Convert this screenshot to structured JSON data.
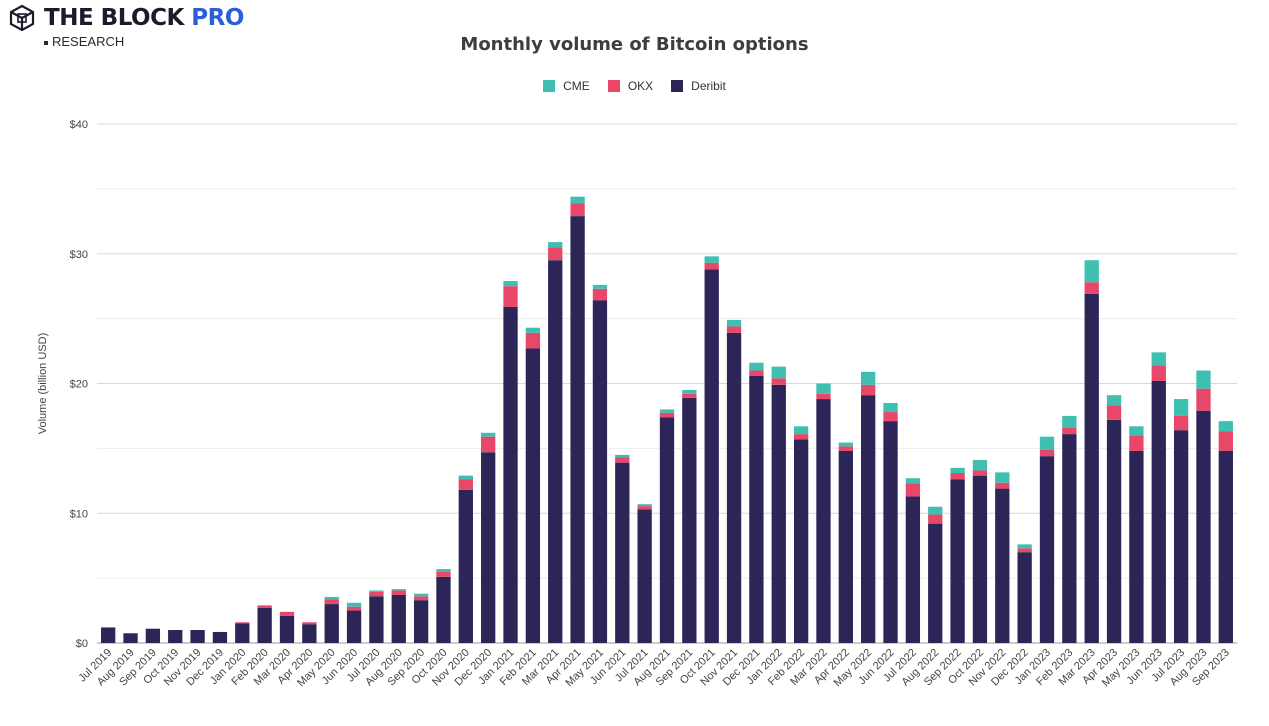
{
  "brand": {
    "name": "THE BLOCK",
    "pro": "PRO",
    "sub": "RESEARCH"
  },
  "chart_data": {
    "type": "bar",
    "stacked": true,
    "title": "Monthly volume of Bitcoin options",
    "xlabel": "",
    "ylabel": "Volume (billion USD)",
    "ylim": [
      0,
      40
    ],
    "yticks": [
      0,
      10,
      20,
      30,
      40
    ],
    "ytick_labels": [
      "$0",
      "$10",
      "$20",
      "$30",
      "$40"
    ],
    "grid": true,
    "legend_position": "top-center",
    "categories": [
      "Jul 2019",
      "Aug 2019",
      "Sep 2019",
      "Oct 2019",
      "Nov 2019",
      "Dec 2019",
      "Jan 2020",
      "Feb 2020",
      "Mar 2020",
      "Apr 2020",
      "May 2020",
      "Jun 2020",
      "Jul 2020",
      "Aug 2020",
      "Sep 2020",
      "Oct 2020",
      "Nov 2020",
      "Dec 2020",
      "Jan 2021",
      "Feb 2021",
      "Mar 2021",
      "Apr 2021",
      "May 2021",
      "Jun 2021",
      "Jul 2021",
      "Aug 2021",
      "Sep 2021",
      "Oct 2021",
      "Nov 2021",
      "Dec 2021",
      "Jan 2022",
      "Feb 2022",
      "Mar 2022",
      "Apr 2022",
      "May 2022",
      "Jun 2022",
      "Jul 2022",
      "Aug 2022",
      "Sep 2022",
      "Oct 2022",
      "Nov 2022",
      "Dec 2022",
      "Jan 2023",
      "Feb 2023",
      "Mar 2023",
      "Apr 2023",
      "May 2023",
      "Jun 2023",
      "Jul 2023",
      "Aug 2023",
      "Sep 2023"
    ],
    "series": [
      {
        "name": "Deribit",
        "color": "#2b2657",
        "values": [
          1.2,
          0.75,
          1.1,
          1.0,
          1.0,
          0.85,
          1.5,
          2.7,
          2.1,
          1.45,
          3.0,
          2.5,
          3.6,
          3.7,
          3.3,
          5.1,
          11.8,
          14.7,
          25.9,
          22.7,
          29.5,
          32.9,
          26.4,
          13.9,
          10.3,
          17.4,
          18.9,
          28.8,
          23.9,
          20.6,
          19.9,
          15.7,
          18.8,
          14.8,
          19.1,
          17.1,
          11.3,
          9.2,
          12.6,
          12.9,
          11.9,
          7.0,
          14.4,
          16.1,
          26.9,
          17.2,
          14.8,
          20.2,
          16.4,
          17.9,
          14.8
        ]
      },
      {
        "name": "OKX",
        "color": "#e8476a",
        "values": [
          0,
          0,
          0,
          0,
          0,
          0,
          0.1,
          0.2,
          0.3,
          0.15,
          0.35,
          0.3,
          0.35,
          0.35,
          0.3,
          0.4,
          0.8,
          1.2,
          1.6,
          1.2,
          1.0,
          1.0,
          0.9,
          0.4,
          0.25,
          0.35,
          0.3,
          0.5,
          0.5,
          0.4,
          0.5,
          0.4,
          0.4,
          0.35,
          0.8,
          0.7,
          1.0,
          0.7,
          0.5,
          0.4,
          0.45,
          0.3,
          0.5,
          0.5,
          0.9,
          1.1,
          1.2,
          1.2,
          1.1,
          1.7,
          1.5
        ]
      },
      {
        "name": "CME",
        "color": "#3fbfb0",
        "values": [
          0,
          0,
          0,
          0,
          0,
          0,
          0,
          0,
          0,
          0,
          0.2,
          0.3,
          0.1,
          0.1,
          0.2,
          0.2,
          0.3,
          0.3,
          0.4,
          0.4,
          0.4,
          0.5,
          0.3,
          0.2,
          0.15,
          0.25,
          0.3,
          0.5,
          0.5,
          0.6,
          0.9,
          0.6,
          0.8,
          0.3,
          1.0,
          0.7,
          0.4,
          0.6,
          0.4,
          0.8,
          0.8,
          0.3,
          1.0,
          0.9,
          1.7,
          0.8,
          0.7,
          1.0,
          1.3,
          1.4,
          0.8
        ]
      }
    ]
  }
}
